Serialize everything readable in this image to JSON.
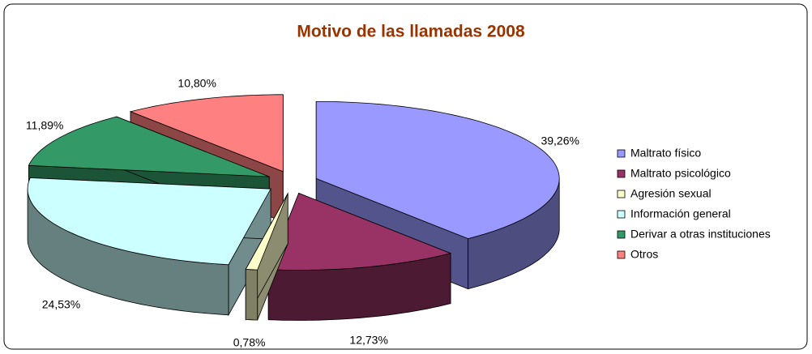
{
  "chart_data": {
    "type": "pie3d",
    "title": "Motivo de las llamadas 2008",
    "categories": [
      "Maltrato físico",
      "Maltrato psicológico",
      "Agresión sexual",
      "Información general",
      "Derivar a otras instituciones",
      "Otros"
    ],
    "values": [
      39.26,
      12.73,
      0.78,
      24.53,
      11.89,
      10.8
    ],
    "value_labels": [
      "39,26%",
      "12,73%",
      "0,78%",
      "24,53%",
      "11,89%",
      "10,80%"
    ],
    "colors": [
      "#9999ff",
      "#993366",
      "#ffffcc",
      "#ccffff",
      "#339966",
      "#ff8080"
    ],
    "legend": "right"
  }
}
